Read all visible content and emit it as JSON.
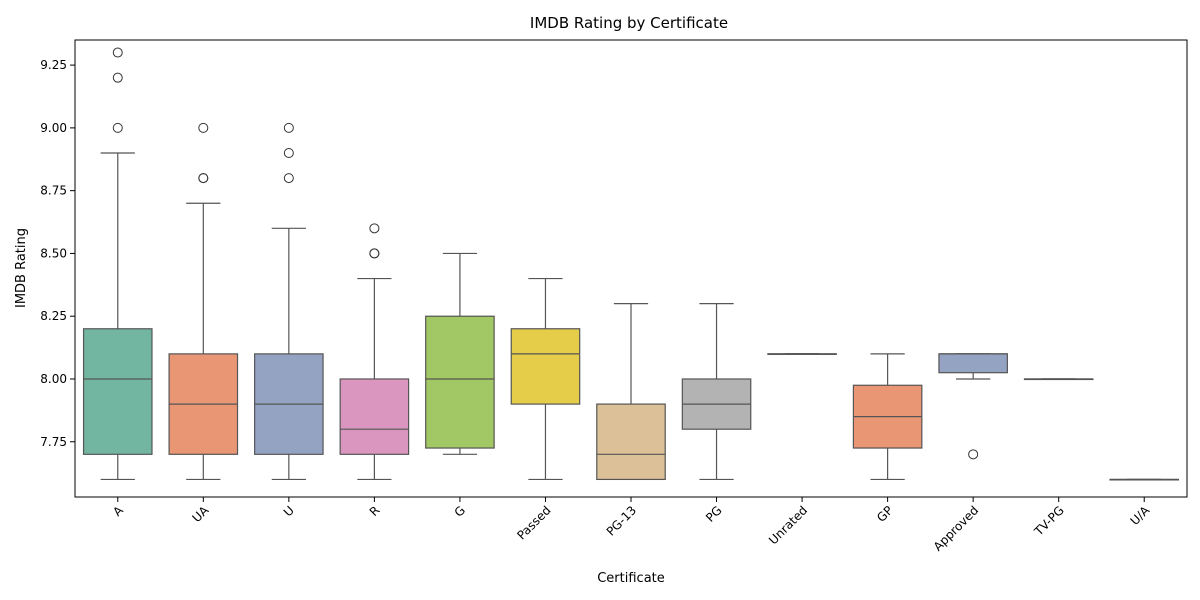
{
  "chart_data": {
    "type": "box",
    "title": "IMDB Rating by Certificate",
    "xlabel": "Certificate",
    "ylabel": "IMDB Rating",
    "ylim": [
      7.53,
      9.35
    ],
    "y_ticks": [
      "7.75",
      "8.00",
      "8.25",
      "8.50",
      "8.75",
      "9.00",
      "9.25"
    ],
    "grid": false,
    "colors": {
      "box_edge": "#555555",
      "axis": "#000000"
    },
    "categories": [
      "A",
      "UA",
      "U",
      "R",
      "G",
      "Passed",
      "PG-13",
      "PG",
      "Unrated",
      "GP",
      "Approved",
      "TV-PG",
      "U/A"
    ],
    "boxes": [
      {
        "category": "A",
        "color": "#72b6a1",
        "whislo": 7.6,
        "q1": 7.7,
        "med": 8.0,
        "q3": 8.2,
        "whishi": 8.9,
        "fliers": [
          9.0,
          9.2,
          9.3
        ]
      },
      {
        "category": "UA",
        "color": "#e99675",
        "whislo": 7.6,
        "q1": 7.7,
        "med": 7.9,
        "q3": 8.1,
        "whishi": 8.7,
        "fliers": [
          8.8,
          8.8,
          9.0
        ]
      },
      {
        "category": "U",
        "color": "#95a3c3",
        "whislo": 7.6,
        "q1": 7.7,
        "med": 7.9,
        "q3": 8.1,
        "whishi": 8.6,
        "fliers": [
          8.8,
          8.9,
          9.0
        ]
      },
      {
        "category": "R",
        "color": "#db96c0",
        "whislo": 7.6,
        "q1": 7.7,
        "med": 7.8,
        "q3": 8.0,
        "whishi": 8.4,
        "fliers": [
          8.5,
          8.5,
          8.6
        ]
      },
      {
        "category": "G",
        "color": "#a2c865",
        "whislo": 7.7,
        "q1": 7.725,
        "med": 8.0,
        "q3": 8.25,
        "whishi": 8.5,
        "fliers": []
      },
      {
        "category": "Passed",
        "color": "#e5cd4a",
        "whislo": 7.6,
        "q1": 7.9,
        "med": 8.1,
        "q3": 8.2,
        "whishi": 8.4,
        "fliers": []
      },
      {
        "category": "PG-13",
        "color": "#dcc198",
        "whislo": 7.6,
        "q1": 7.6,
        "med": 7.7,
        "q3": 7.9,
        "whishi": 8.3,
        "fliers": []
      },
      {
        "category": "PG",
        "color": "#b3b3b3",
        "whislo": 7.6,
        "q1": 7.8,
        "med": 7.9,
        "q3": 8.0,
        "whishi": 8.3,
        "fliers": []
      },
      {
        "category": "Unrated",
        "color": "#72b6a1",
        "whislo": 8.1,
        "q1": 8.1,
        "med": 8.1,
        "q3": 8.1,
        "whishi": 8.1,
        "fliers": []
      },
      {
        "category": "GP",
        "color": "#e99675",
        "whislo": 7.6,
        "q1": 7.725,
        "med": 7.85,
        "q3": 7.975,
        "whishi": 8.1,
        "fliers": []
      },
      {
        "category": "Approved",
        "color": "#95a3c3",
        "whislo": 8.0,
        "q1": 8.025,
        "med": 8.1,
        "q3": 8.1,
        "whishi": 8.1,
        "fliers": [
          7.7
        ]
      },
      {
        "category": "TV-PG",
        "color": "#db96c0",
        "whislo": 8.0,
        "q1": 8.0,
        "med": 8.0,
        "q3": 8.0,
        "whishi": 8.0,
        "fliers": []
      },
      {
        "category": "U/A",
        "color": "#a2c865",
        "whislo": 7.6,
        "q1": 7.6,
        "med": 7.6,
        "q3": 7.6,
        "whishi": 7.6,
        "fliers": []
      }
    ]
  }
}
